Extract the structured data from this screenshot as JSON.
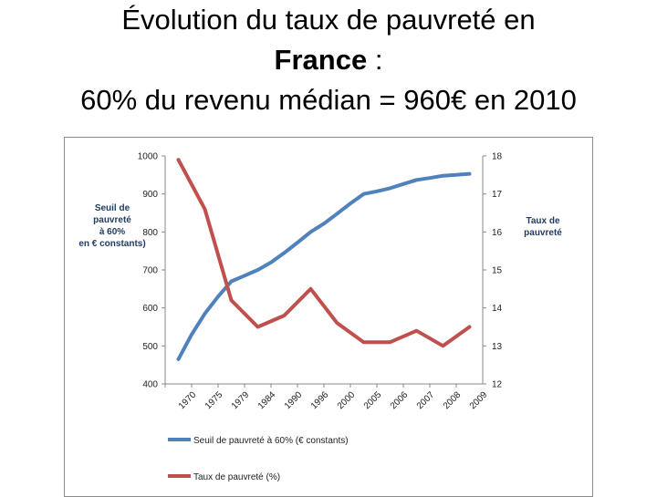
{
  "title": {
    "line1": "Évolution du taux de pauvreté en",
    "line2_bold": "France",
    "line2_rest": " :",
    "line3": "60% du revenu médian = 960€ en 2010"
  },
  "chart_data": {
    "type": "line",
    "categories": [
      "1970",
      "1975",
      "1979",
      "1984",
      "1990",
      "1996",
      "2000",
      "2005",
      "2006",
      "2007",
      "2008",
      "2009"
    ],
    "y_left": {
      "label_lines": [
        "Seuil de",
        "pauvreté",
        "à 60%",
        "en  € constants)"
      ],
      "ylim": [
        400,
        1000
      ],
      "ticks": [
        400,
        500,
        600,
        700,
        800,
        900,
        1000
      ]
    },
    "y_right": {
      "label_lines": [
        "Taux de",
        "pauvreté"
      ],
      "ylim": [
        12,
        18
      ],
      "ticks": [
        12,
        13,
        14,
        15,
        16,
        17,
        18
      ]
    },
    "series": [
      {
        "name": "Seuil de pauvreté à 60% (€ constants)",
        "axis": "left",
        "color": "#4f81bd",
        "x": [
          0,
          0.5,
          1,
          1.5,
          2,
          2.5,
          3,
          3.5,
          4,
          4.5,
          5,
          5.5,
          6,
          6.5,
          7,
          7.5,
          8,
          8.5,
          9,
          9.5,
          10,
          10.5,
          11
        ],
        "values": [
          465,
          530,
          585,
          630,
          670,
          685,
          700,
          720,
          745,
          772,
          800,
          822,
          848,
          875,
          900,
          907,
          915,
          926,
          937,
          942,
          948,
          950,
          953
        ]
      },
      {
        "name": "Taux de pauvreté (%)",
        "axis": "right",
        "color": "#c0504d",
        "x": [
          0,
          1,
          2,
          3,
          4,
          5,
          6,
          7,
          8,
          9,
          10,
          11
        ],
        "values": [
          17.9,
          16.6,
          14.2,
          13.5,
          13.8,
          14.5,
          13.6,
          13.1,
          13.1,
          13.4,
          13.0,
          13.5
        ]
      }
    ]
  }
}
